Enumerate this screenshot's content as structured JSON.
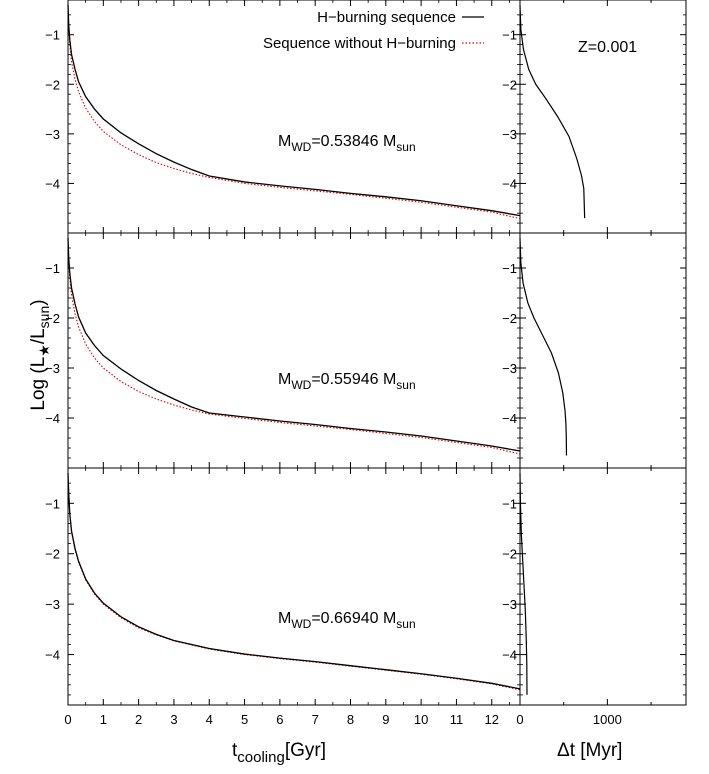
{
  "chart_data": {
    "type": "line",
    "metallicity_label": "Z=0.001",
    "legend": {
      "placement": "top-right",
      "entries": [
        {
          "label": "H−burning sequence",
          "color": "#000000",
          "style": "solid"
        },
        {
          "label": "Sequence without H−burning",
          "color": "#dd0000",
          "style": "dotted"
        }
      ]
    },
    "ylabel": "Log (L★/Lsun)",
    "ylabel_parts": {
      "prefix": "Log (L",
      "sub": "★",
      "mid": "/L",
      "sub2": "sun",
      "suffix": ")"
    },
    "xlabel_left": {
      "prefix": "t",
      "sub": "cooling",
      "suffix": "[Gyr]"
    },
    "xlabel_right": "Δt [Myr]",
    "x_left": {
      "range": [
        0,
        12.8
      ],
      "ticks": [
        0,
        1,
        2,
        3,
        4,
        5,
        6,
        7,
        8,
        9,
        10,
        11,
        12
      ]
    },
    "x_right": {
      "range": [
        0,
        1900
      ],
      "ticks": [
        0,
        1000
      ]
    },
    "y": {
      "range": [
        -5.0,
        -0.3
      ],
      "ticks": [
        -1,
        -2,
        -3,
        -4
      ],
      "tick_labels": [
        "−1",
        "−2",
        "−3",
        "−4"
      ]
    },
    "panels": [
      {
        "mass_label": {
          "prefix": "M",
          "sub": "WD",
          "value": "=0.53846 M",
          "sub2": "sun"
        },
        "series": [
          {
            "name": "H−burning sequence",
            "points": [
              [
                0.0,
                -0.4
              ],
              [
                0.02,
                -0.8
              ],
              [
                0.05,
                -1.1
              ],
              [
                0.1,
                -1.4
              ],
              [
                0.2,
                -1.7
              ],
              [
                0.3,
                -1.95
              ],
              [
                0.5,
                -2.25
              ],
              [
                0.75,
                -2.5
              ],
              [
                1.0,
                -2.7
              ],
              [
                1.5,
                -2.98
              ],
              [
                2.0,
                -3.2
              ],
              [
                2.5,
                -3.4
              ],
              [
                3.0,
                -3.57
              ],
              [
                3.5,
                -3.72
              ],
              [
                4.0,
                -3.85
              ],
              [
                5.0,
                -3.97
              ],
              [
                6.0,
                -4.05
              ],
              [
                7.0,
                -4.12
              ],
              [
                8.0,
                -4.2
              ],
              [
                9.0,
                -4.27
              ],
              [
                10.0,
                -4.35
              ],
              [
                11.0,
                -4.45
              ],
              [
                12.0,
                -4.55
              ],
              [
                12.8,
                -4.65
              ]
            ]
          },
          {
            "name": "Sequence without H−burning",
            "points": [
              [
                0.0,
                -0.4
              ],
              [
                0.02,
                -0.85
              ],
              [
                0.05,
                -1.2
              ],
              [
                0.1,
                -1.55
              ],
              [
                0.2,
                -1.9
              ],
              [
                0.3,
                -2.15
              ],
              [
                0.5,
                -2.48
              ],
              [
                0.75,
                -2.75
              ],
              [
                1.0,
                -2.95
              ],
              [
                1.5,
                -3.22
              ],
              [
                2.0,
                -3.42
              ],
              [
                2.5,
                -3.58
              ],
              [
                3.0,
                -3.7
              ],
              [
                3.5,
                -3.8
              ],
              [
                4.0,
                -3.88
              ],
              [
                5.0,
                -4.0
              ],
              [
                6.0,
                -4.08
              ],
              [
                7.0,
                -4.15
              ],
              [
                8.0,
                -4.22
              ],
              [
                9.0,
                -4.3
              ],
              [
                10.0,
                -4.38
              ],
              [
                11.0,
                -4.48
              ],
              [
                12.0,
                -4.58
              ],
              [
                12.8,
                -4.71
              ]
            ]
          }
        ],
        "delta_t": [
          [
            0,
            -0.4
          ],
          [
            10,
            -0.9
          ],
          [
            40,
            -1.3
          ],
          [
            100,
            -1.7
          ],
          [
            180,
            -2.0
          ],
          [
            300,
            -2.3
          ],
          [
            430,
            -2.65
          ],
          [
            560,
            -3.05
          ],
          [
            650,
            -3.5
          ],
          [
            705,
            -3.85
          ],
          [
            730,
            -4.1
          ],
          [
            735,
            -4.4
          ],
          [
            740,
            -4.7
          ]
        ]
      },
      {
        "mass_label": {
          "prefix": "M",
          "sub": "WD",
          "value": "=0.55946 M",
          "sub2": "sun"
        },
        "series": [
          {
            "name": "H−burning sequence",
            "points": [
              [
                0.0,
                -0.4
              ],
              [
                0.02,
                -0.8
              ],
              [
                0.05,
                -1.1
              ],
              [
                0.1,
                -1.4
              ],
              [
                0.2,
                -1.72
              ],
              [
                0.3,
                -1.98
              ],
              [
                0.5,
                -2.3
              ],
              [
                0.75,
                -2.55
              ],
              [
                1.0,
                -2.75
              ],
              [
                1.5,
                -3.02
              ],
              [
                2.0,
                -3.25
              ],
              [
                2.5,
                -3.45
              ],
              [
                3.0,
                -3.62
              ],
              [
                3.5,
                -3.78
              ],
              [
                4.0,
                -3.9
              ],
              [
                5.0,
                -3.98
              ],
              [
                6.0,
                -4.06
              ],
              [
                7.0,
                -4.13
              ],
              [
                8.0,
                -4.21
              ],
              [
                9.0,
                -4.28
              ],
              [
                10.0,
                -4.36
              ],
              [
                11.0,
                -4.46
              ],
              [
                12.0,
                -4.56
              ],
              [
                12.8,
                -4.66
              ]
            ]
          },
          {
            "name": "Sequence without H−burning",
            "points": [
              [
                0.0,
                -0.4
              ],
              [
                0.02,
                -0.85
              ],
              [
                0.05,
                -1.2
              ],
              [
                0.1,
                -1.55
              ],
              [
                0.2,
                -1.92
              ],
              [
                0.3,
                -2.18
              ],
              [
                0.5,
                -2.52
              ],
              [
                0.75,
                -2.8
              ],
              [
                1.0,
                -3.0
              ],
              [
                1.5,
                -3.27
              ],
              [
                2.0,
                -3.47
              ],
              [
                2.5,
                -3.62
              ],
              [
                3.0,
                -3.74
              ],
              [
                3.5,
                -3.84
              ],
              [
                4.0,
                -3.92
              ],
              [
                5.0,
                -4.01
              ],
              [
                6.0,
                -4.09
              ],
              [
                7.0,
                -4.16
              ],
              [
                8.0,
                -4.23
              ],
              [
                9.0,
                -4.31
              ],
              [
                10.0,
                -4.39
              ],
              [
                11.0,
                -4.49
              ],
              [
                12.0,
                -4.59
              ],
              [
                12.8,
                -4.72
              ]
            ]
          }
        ],
        "delta_t": [
          [
            0,
            -0.4
          ],
          [
            10,
            -0.9
          ],
          [
            35,
            -1.3
          ],
          [
            90,
            -1.7
          ],
          [
            160,
            -2.0
          ],
          [
            260,
            -2.35
          ],
          [
            360,
            -2.7
          ],
          [
            440,
            -3.1
          ],
          [
            490,
            -3.5
          ],
          [
            515,
            -3.85
          ],
          [
            525,
            -4.1
          ],
          [
            530,
            -4.4
          ],
          [
            532,
            -4.75
          ]
        ]
      },
      {
        "mass_label": {
          "prefix": "M",
          "sub": "WD",
          "value": "=0.66940 M",
          "sub2": "sun"
        },
        "series": [
          {
            "name": "H−burning sequence",
            "points": [
              [
                0.0,
                -0.4
              ],
              [
                0.02,
                -0.8
              ],
              [
                0.05,
                -1.2
              ],
              [
                0.1,
                -1.55
              ],
              [
                0.2,
                -1.9
              ],
              [
                0.3,
                -2.15
              ],
              [
                0.5,
                -2.5
              ],
              [
                0.75,
                -2.78
              ],
              [
                1.0,
                -2.98
              ],
              [
                1.5,
                -3.25
              ],
              [
                2.0,
                -3.45
              ],
              [
                2.5,
                -3.6
              ],
              [
                3.0,
                -3.72
              ],
              [
                3.5,
                -3.8
              ],
              [
                4.0,
                -3.88
              ],
              [
                5.0,
                -3.99
              ],
              [
                6.0,
                -4.07
              ],
              [
                7.0,
                -4.14
              ],
              [
                8.0,
                -4.22
              ],
              [
                9.0,
                -4.3
              ],
              [
                10.0,
                -4.38
              ],
              [
                11.0,
                -4.47
              ],
              [
                12.0,
                -4.57
              ],
              [
                12.8,
                -4.68
              ]
            ]
          },
          {
            "name": "Sequence without H−burning",
            "points": [
              [
                0.0,
                -0.4
              ],
              [
                0.02,
                -0.82
              ],
              [
                0.05,
                -1.22
              ],
              [
                0.1,
                -1.57
              ],
              [
                0.2,
                -1.92
              ],
              [
                0.3,
                -2.17
              ],
              [
                0.5,
                -2.52
              ],
              [
                0.75,
                -2.8
              ],
              [
                1.0,
                -3.0
              ],
              [
                1.5,
                -3.27
              ],
              [
                2.0,
                -3.47
              ],
              [
                2.5,
                -3.61
              ],
              [
                3.0,
                -3.73
              ],
              [
                3.5,
                -3.81
              ],
              [
                4.0,
                -3.89
              ],
              [
                5.0,
                -4.0
              ],
              [
                6.0,
                -4.08
              ],
              [
                7.0,
                -4.15
              ],
              [
                8.0,
                -4.23
              ],
              [
                9.0,
                -4.31
              ],
              [
                10.0,
                -4.39
              ],
              [
                11.0,
                -4.48
              ],
              [
                12.0,
                -4.58
              ],
              [
                12.8,
                -4.7
              ]
            ]
          }
        ],
        "delta_t": [
          [
            0,
            -0.4
          ],
          [
            5,
            -1.0
          ],
          [
            15,
            -1.6
          ],
          [
            30,
            -2.1
          ],
          [
            45,
            -2.6
          ],
          [
            60,
            -3.1
          ],
          [
            70,
            -3.6
          ],
          [
            75,
            -3.95
          ],
          [
            78,
            -4.2
          ],
          [
            79,
            -4.5
          ],
          [
            80,
            -4.8
          ]
        ]
      }
    ]
  }
}
